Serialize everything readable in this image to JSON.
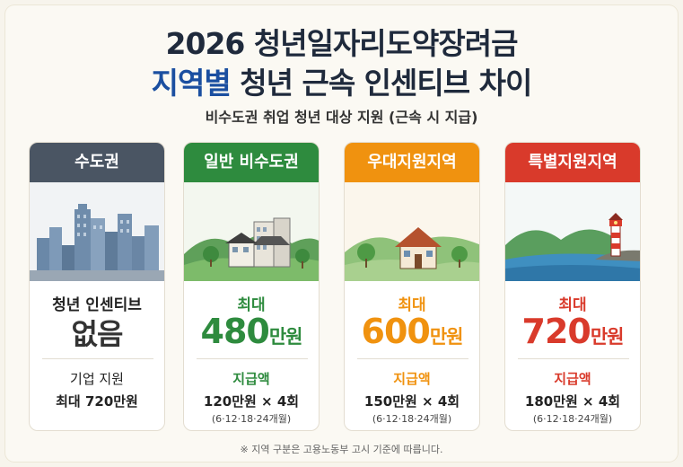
{
  "header": {
    "title_line1": "2026 청년일자리도약장려금",
    "title_line2_highlight": "지역별",
    "title_line2_rest": " 청년 근속 인센티브 차이",
    "subtitle": "비수도권 취업 청년 대상 지원 (근속 시 지급)"
  },
  "cards": [
    {
      "name": "수도권",
      "color": "#4a5563",
      "line1": "청년 인센티브",
      "big_value": "없음",
      "big_unit": "",
      "label": "기업 지원",
      "amount": "최대 720만원",
      "schedule": ""
    },
    {
      "name": "일반 비수도권",
      "color": "#2e8b3e",
      "line1": "최대",
      "big_value": "480",
      "big_unit": "만원",
      "label": "지급액",
      "amount": "120만원 × 4회",
      "schedule": "(6·12·18·24개월)"
    },
    {
      "name": "우대지원지역",
      "color": "#f0920f",
      "line1": "최대",
      "big_value": "600",
      "big_unit": "만원",
      "label": "지급액",
      "amount": "150만원 × 4회",
      "schedule": "(6·12·18·24개월)"
    },
    {
      "name": "특별지원지역",
      "color": "#d93a2b",
      "line1": "최대",
      "big_value": "720",
      "big_unit": "만원",
      "label": "지급액",
      "amount": "180만원 × 4회",
      "schedule": "(6·12·18·24개월)"
    }
  ],
  "footnote": "※ 지역 구분은 고용노동부 고시 기준에 따릅니다."
}
